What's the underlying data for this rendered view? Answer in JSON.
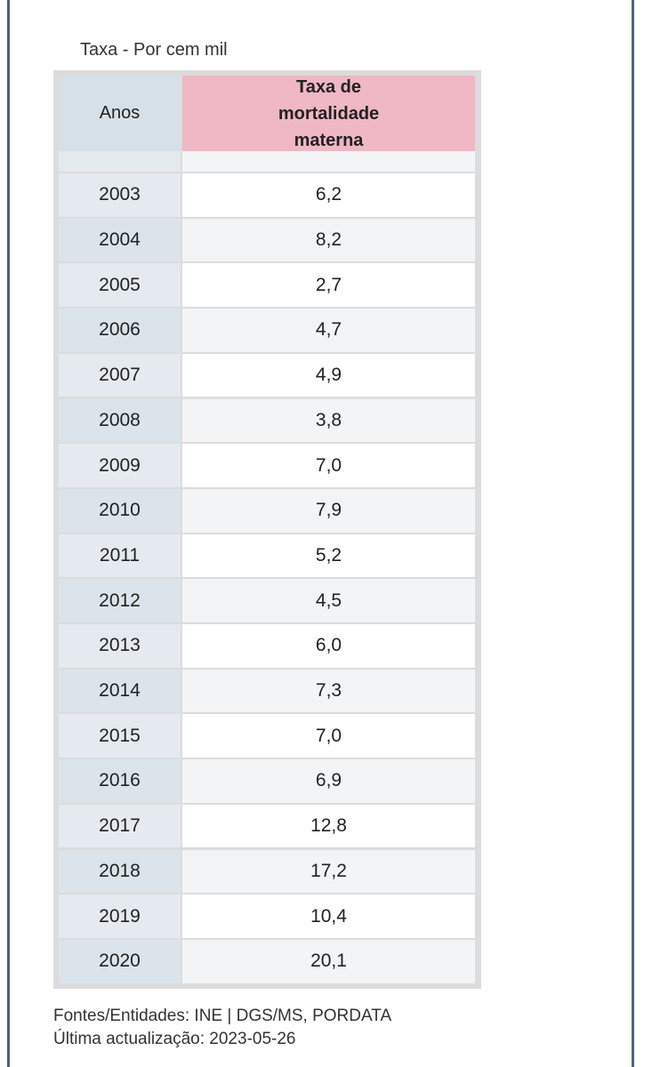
{
  "unit_label": "Taxa - Por cem mil",
  "table": {
    "header": [
      "Anos",
      "Taxa de mortalidade materna"
    ],
    "rows": [
      [
        "2003",
        "6,2"
      ],
      [
        "2004",
        "8,2"
      ],
      [
        "2005",
        "2,7"
      ],
      [
        "2006",
        "4,7"
      ],
      [
        "2007",
        "4,9"
      ],
      [
        "2008",
        "3,8"
      ],
      [
        "2009",
        "7,0"
      ],
      [
        "2010",
        "7,9"
      ],
      [
        "2011",
        "5,2"
      ],
      [
        "2012",
        "4,5"
      ],
      [
        "2013",
        "6,0"
      ],
      [
        "2014",
        "7,3"
      ],
      [
        "2015",
        "7,0"
      ],
      [
        "2016",
        "6,9"
      ],
      [
        "2017",
        "12,8"
      ],
      [
        "2018",
        "17,2"
      ],
      [
        "2019",
        "10,4"
      ],
      [
        "2020",
        "20,1"
      ]
    ]
  },
  "footer": {
    "sources": "Fontes/Entidades: INE | DGS/MS, PORDATA",
    "updated": "Última actualização: 2023-05-26"
  }
}
